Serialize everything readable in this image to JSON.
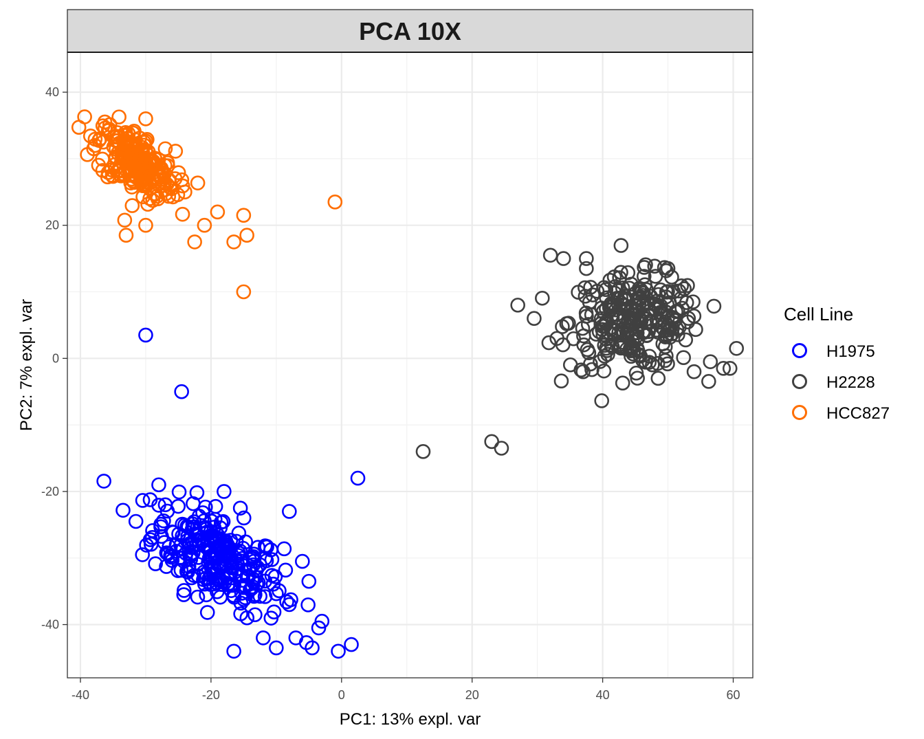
{
  "chart_data": {
    "type": "scatter",
    "title": "PCA 10X",
    "xlabel": "PC1: 13% expl. var",
    "ylabel": "PC2: 7% expl. var",
    "xlim": [
      -42,
      63
    ],
    "ylim": [
      -48,
      46
    ],
    "xticks": [
      "-40",
      "-20",
      "0",
      "20",
      "40",
      "60"
    ],
    "yticks": [
      "-40",
      "-20",
      "0",
      "20",
      "40"
    ],
    "grid": true,
    "legend": {
      "title": "Cell Line",
      "position": "right"
    },
    "series": [
      {
        "name": "H1975",
        "color": "#0000FF",
        "cluster": {
          "center": [
            -19,
            -30
          ],
          "spread": [
            5,
            4.5
          ],
          "count": 260
        },
        "points": [
          [
            -30,
            3.5
          ],
          [
            -24.5,
            -5
          ],
          [
            2.5,
            -18
          ],
          [
            -28,
            -19
          ],
          [
            -18,
            -20
          ],
          [
            -8,
            -23
          ],
          [
            -6,
            -30.5
          ],
          [
            -16.5,
            -44
          ],
          [
            -10,
            -43.5
          ],
          [
            -0.5,
            -44
          ],
          [
            1.5,
            -43
          ],
          [
            -4.5,
            -43.5
          ],
          [
            -3,
            -39.5
          ],
          [
            -31.5,
            -24.5
          ],
          [
            -30.5,
            -29.5
          ],
          [
            -15.5,
            -22.5
          ],
          [
            -5,
            -33.5
          ],
          [
            -12,
            -42
          ],
          [
            -8,
            -37
          ],
          [
            -3.5,
            -40.5
          ],
          [
            -7,
            -42
          ],
          [
            -27,
            -22
          ]
        ]
      },
      {
        "name": "H2228",
        "color": "#404040",
        "cluster": {
          "center": [
            45,
            5.5
          ],
          "spread": [
            5,
            3.5
          ],
          "count": 260
        },
        "points": [
          [
            12.5,
            -14
          ],
          [
            23,
            -12.5
          ],
          [
            24.5,
            -13.5
          ],
          [
            27,
            8
          ],
          [
            29.5,
            6
          ],
          [
            32,
            15.5
          ],
          [
            34,
            15
          ],
          [
            37.5,
            15
          ],
          [
            50,
            13.5
          ],
          [
            60.5,
            1.5
          ],
          [
            59.5,
            -1.5
          ],
          [
            58.5,
            -1.5
          ],
          [
            37,
            -2
          ],
          [
            48.5,
            -3
          ],
          [
            54,
            -2
          ],
          [
            56.5,
            -0.5
          ],
          [
            33,
            3
          ],
          [
            37.5,
            13.5
          ],
          [
            52,
            9
          ]
        ]
      },
      {
        "name": "HCC827",
        "color": "#FF6E00",
        "cluster": {
          "center": [
            -31.5,
            29.5
          ],
          "spread": [
            3,
            3
          ],
          "count": 220
        },
        "points": [
          [
            -30,
            36
          ],
          [
            -1,
            23.5
          ],
          [
            -15,
            10
          ],
          [
            -15,
            21.5
          ],
          [
            -14.5,
            18.5
          ],
          [
            -16.5,
            17.5
          ],
          [
            -33,
            18.5
          ],
          [
            -30,
            20
          ],
          [
            -22.5,
            17.5
          ],
          [
            -19,
            22
          ],
          [
            -36.5,
            32.5
          ],
          [
            -37,
            33
          ],
          [
            -27,
            31.5
          ],
          [
            -25.5,
            27
          ],
          [
            -24,
            25
          ],
          [
            -21,
            20
          ]
        ]
      }
    ]
  }
}
